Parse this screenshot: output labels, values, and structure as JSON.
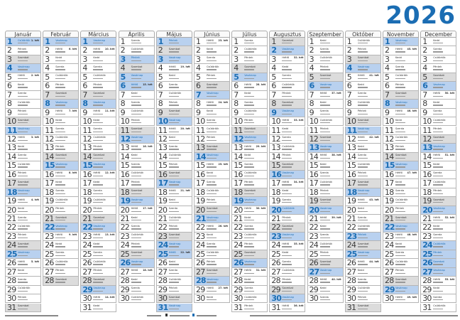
{
  "year": "2026",
  "months": [
    "Január",
    "Február",
    "Március",
    "Április",
    "Május",
    "Június",
    "Július",
    "Augusztus",
    "Szeptember",
    "Október",
    "November",
    "December"
  ],
  "weekdays": [
    "Vasárnap",
    "Hétfő",
    "Kedd",
    "Szerda",
    "Csütörtök",
    "Péntek",
    "Szombat"
  ],
  "week_label_suffix": ". hét",
  "holidays": [
    "1-1",
    "3-15",
    "4-3",
    "4-5",
    "4-6",
    "5-1",
    "5-24",
    "5-25",
    "8-20",
    "10-23",
    "11-1",
    "12-24",
    "12-25",
    "12-26"
  ],
  "colors": {
    "accent": "#1b6db3",
    "holiday_bg": "#b9d1ef",
    "saturday_bg": "#dcdcdc",
    "border": "#b5b5b5"
  }
}
